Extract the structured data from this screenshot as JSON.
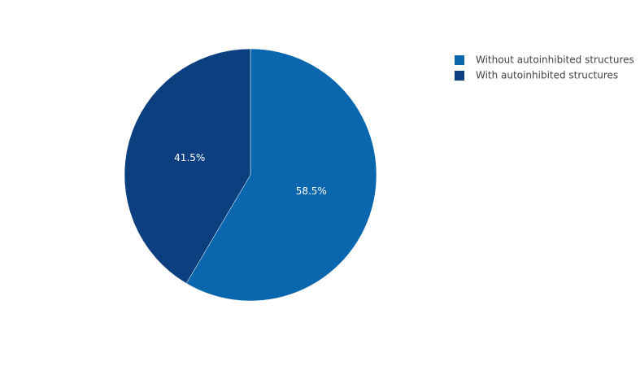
{
  "chart_data": {
    "type": "pie",
    "labels": [
      "Without autoinhibited structures",
      "With autoinhibited structures"
    ],
    "values": [
      58.5,
      41.5
    ],
    "value_labels": [
      "58.5%",
      "41.5%"
    ],
    "colors": [
      "#0a66ad",
      "#0b3f7f"
    ],
    "legend": "top-right"
  }
}
